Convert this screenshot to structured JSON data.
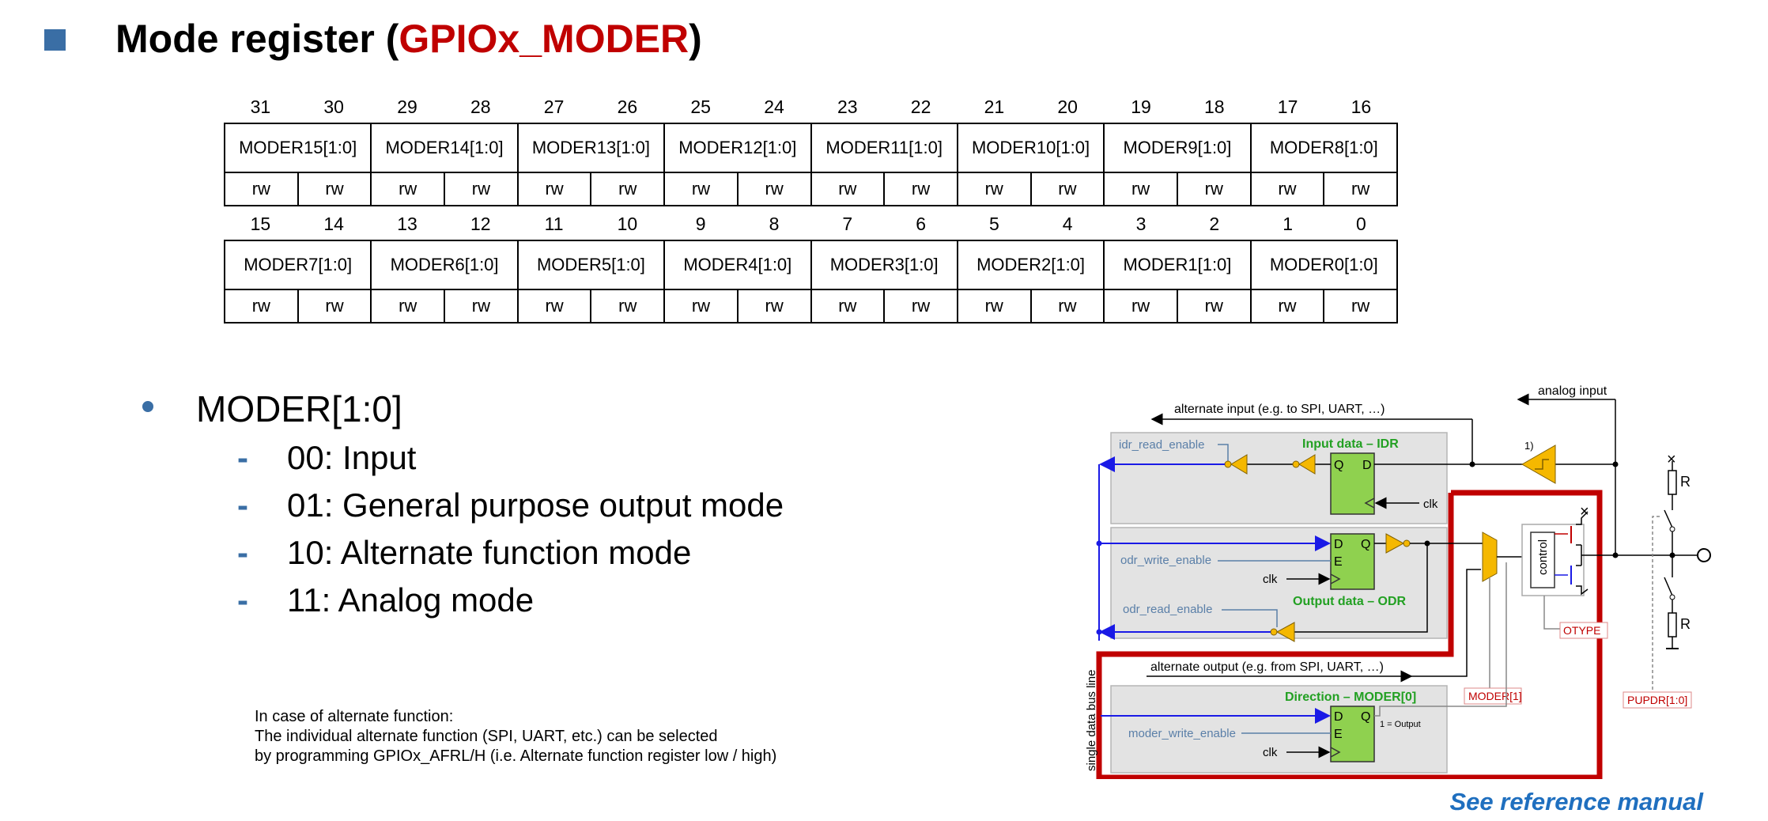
{
  "title": {
    "prefix": "Mode register (",
    "highlight": "GPIOx_MODER",
    "suffix": ")",
    "highlight_color": "#c00000"
  },
  "register": {
    "upper": {
      "bits": [
        "31",
        "30",
        "29",
        "28",
        "27",
        "26",
        "25",
        "24",
        "23",
        "22",
        "21",
        "20",
        "19",
        "18",
        "17",
        "16"
      ],
      "fields": [
        "MODER15[1:0]",
        "MODER14[1:0]",
        "MODER13[1:0]",
        "MODER12[1:0]",
        "MODER11[1:0]",
        "MODER10[1:0]",
        "MODER9[1:0]",
        "MODER8[1:0]"
      ]
    },
    "lower": {
      "bits": [
        "15",
        "14",
        "13",
        "12",
        "11",
        "10",
        "9",
        "8",
        "7",
        "6",
        "5",
        "4",
        "3",
        "2",
        "1",
        "0"
      ],
      "fields": [
        "MODER7[1:0]",
        "MODER6[1:0]",
        "MODER5[1:0]",
        "MODER4[1:0]",
        "MODER3[1:0]",
        "MODER2[1:0]",
        "MODER1[1:0]",
        "MODER0[1:0]"
      ]
    },
    "access": "rw"
  },
  "bullets": {
    "main": "MODER[1:0]",
    "items": [
      "00: Input",
      "01: General purpose output mode",
      "10: Alternate function mode",
      "11: Analog mode"
    ]
  },
  "note": {
    "lines": [
      "In case of alternate function:",
      "The individual alternate function (SPI, UART, etc.) can be selected",
      "by programming GPIOx_AFRL/H (i.e. Alternate function register low / high)"
    ]
  },
  "see_reference": "See reference manual",
  "diagram": {
    "analog_input": "analog input",
    "alternate_input": "alternate input (e.g. to SPI, UART, …)",
    "idr_read_enable": "idr_read_enable",
    "input_data_title": "Input data – IDR",
    "q": "Q",
    "d": "D",
    "e": "E",
    "clk": "clk",
    "footnote": "1)",
    "odr_write_enable": "odr_write_enable",
    "output_data_title": "Output data – ODR",
    "odr_read_enable": "odr_read_enable",
    "control": "control",
    "otype": "OTYPE",
    "x_mark": "×",
    "r": "R",
    "single_bus": "single data bus line",
    "alternate_output": "alternate output (e.g. from SPI, UART, …)",
    "moder1": "MODER[1]",
    "pupdr": "PUPDR[1:0]",
    "direction_title": "Direction – MODER[0]",
    "output_note": "1 = Output",
    "moder_write_enable": "moder_write_enable",
    "colors": {
      "wire_blue": "#1a1ae6",
      "box_green": "#8fd14f",
      "buffer_yellow": "#f5b800",
      "frame_red": "#c00000",
      "panel_gray": "#e3e3e3",
      "label_blue": "#5a7fa8",
      "title_green": "#22a022"
    }
  }
}
